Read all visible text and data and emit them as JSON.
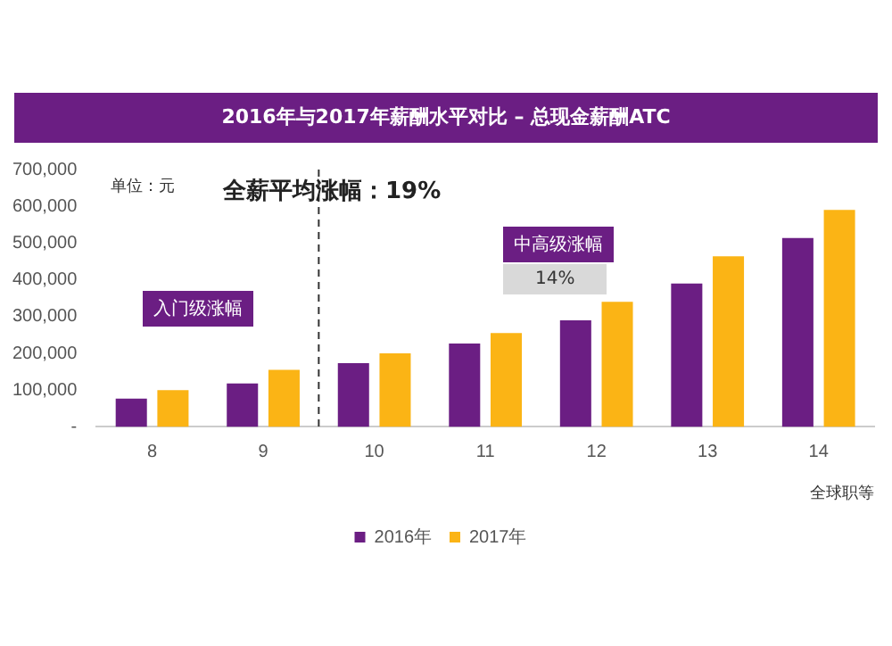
{
  "chart_data": {
    "type": "bar",
    "title": "2016年与2017年薪酬水平对比 – 总现金薪酬ATC",
    "xlabel": "全球职等",
    "x": [
      8,
      9,
      10,
      11,
      12,
      13,
      14
    ],
    "xlim": [
      7.5,
      14.5
    ],
    "xticks": [
      8,
      9,
      10,
      11,
      12,
      13,
      14
    ],
    "series": [
      {
        "name": "2016年",
        "color": "#6b1e83",
        "values": [
          77000,
          118000,
          173000,
          227000,
          290000,
          390000,
          514000
        ]
      },
      {
        "name": "2017年",
        "color": "#fbb415",
        "values": [
          100000,
          155000,
          200000,
          255000,
          340000,
          464000,
          590000
        ]
      }
    ],
    "ylim": [
      0,
      700000
    ],
    "yticks": [
      {
        "value": 0,
        "label": "-"
      },
      {
        "value": 100000,
        "label": "100,000"
      },
      {
        "value": 200000,
        "label": "200,000"
      },
      {
        "value": 300000,
        "label": "300,000"
      },
      {
        "value": 400000,
        "label": "400,000"
      },
      {
        "value": 500000,
        "label": "500,000"
      },
      {
        "value": 600000,
        "label": "600,000"
      },
      {
        "value": 700000,
        "label": "700,000"
      }
    ],
    "ref_lines": [
      {
        "axis": "x",
        "value": 9.5,
        "line_style": "dashed",
        "color": "#333333"
      }
    ],
    "annotations": [
      "单位：元",
      "全薪平均涨幅：19%",
      "入门级涨幅",
      "中高级涨幅",
      "14%"
    ],
    "grid": false,
    "legend": "bottom"
  }
}
